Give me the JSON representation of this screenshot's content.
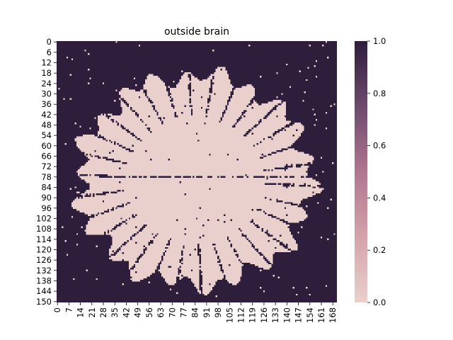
{
  "chart_data": {
    "type": "heatmap",
    "title": "outside brain",
    "xlabel": "",
    "ylabel": "",
    "rows": 151,
    "cols": 171,
    "xticks": [
      0,
      7,
      14,
      21,
      28,
      35,
      42,
      49,
      56,
      63,
      70,
      77,
      84,
      91,
      98,
      105,
      112,
      119,
      126,
      133,
      140,
      147,
      154,
      161,
      168
    ],
    "yticks": [
      0,
      6,
      12,
      18,
      24,
      30,
      36,
      42,
      48,
      54,
      60,
      66,
      72,
      78,
      84,
      90,
      96,
      102,
      108,
      114,
      120,
      126,
      132,
      138,
      144,
      150
    ],
    "colorbar": {
      "min": 0.0,
      "max": 1.0,
      "ticks": [
        "0.0",
        "0.2",
        "0.4",
        "0.6",
        "0.8",
        "1.0"
      ],
      "color_low": "#ead0cc",
      "color_high": "#2e1e3b"
    },
    "mask_description_values": {
      "outside_value": 1,
      "brain_value": 0
    },
    "brain_region": {
      "center_col": 84,
      "center_row": 80,
      "radius_cols": 77,
      "radius_rows": 66,
      "midline_row": 78
    }
  }
}
